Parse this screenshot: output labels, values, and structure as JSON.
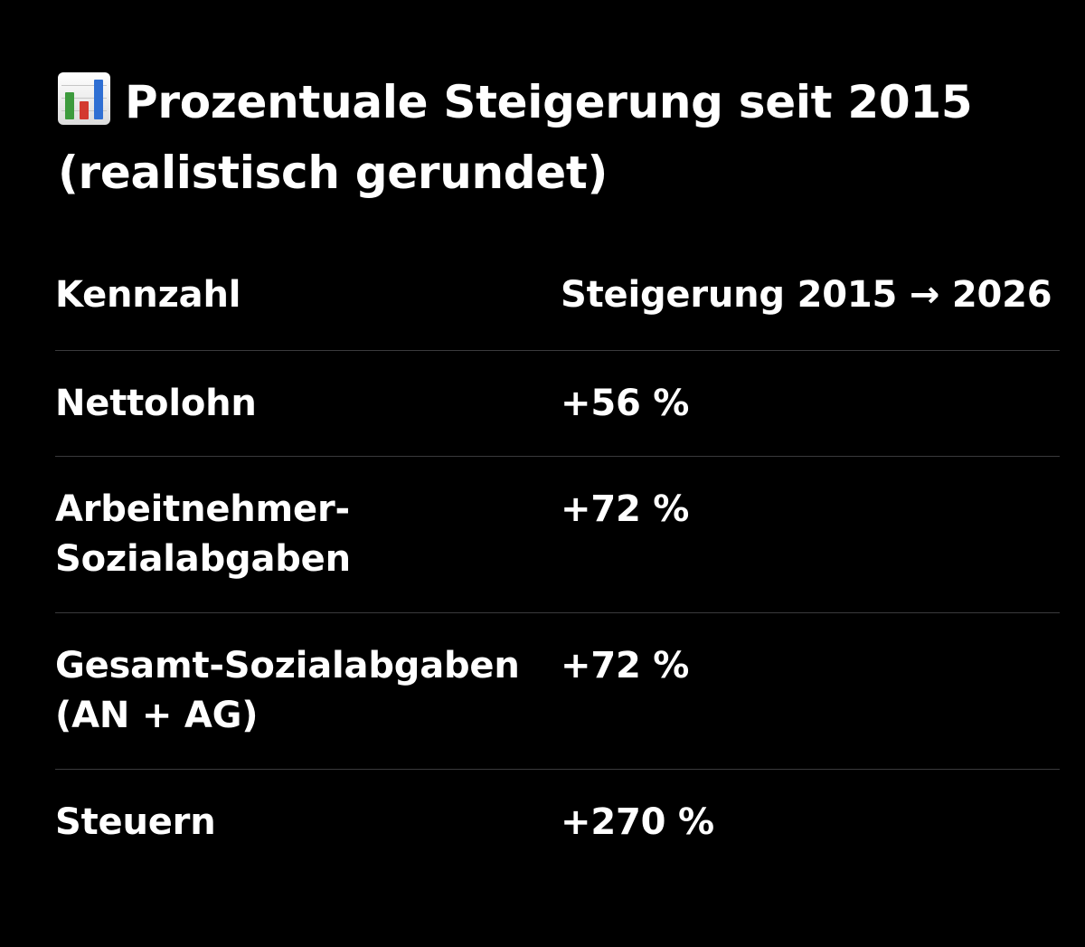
{
  "heading": {
    "icon": "bar-chart-emoji",
    "title": "Prozentuale Steigerung seit 2015 (realistisch gerundet)"
  },
  "table": {
    "columns": [
      "Kennzahl",
      "Steigerung 2015 → 2026"
    ],
    "rows": [
      {
        "kennzahl": "Nettolohn",
        "steigerung": "+56 %"
      },
      {
        "kennzahl": "Arbeitnehmer-Sozialabgaben",
        "steigerung": "+72 %"
      },
      {
        "kennzahl": "Gesamt-Sozialabgaben (AN + AG)",
        "steigerung": "+72 %"
      },
      {
        "kennzahl": "Steuern",
        "steigerung": "+270 %"
      }
    ]
  },
  "colors": {
    "background": "#000000",
    "text": "#ffffff",
    "divider": "#3a3a3c"
  }
}
